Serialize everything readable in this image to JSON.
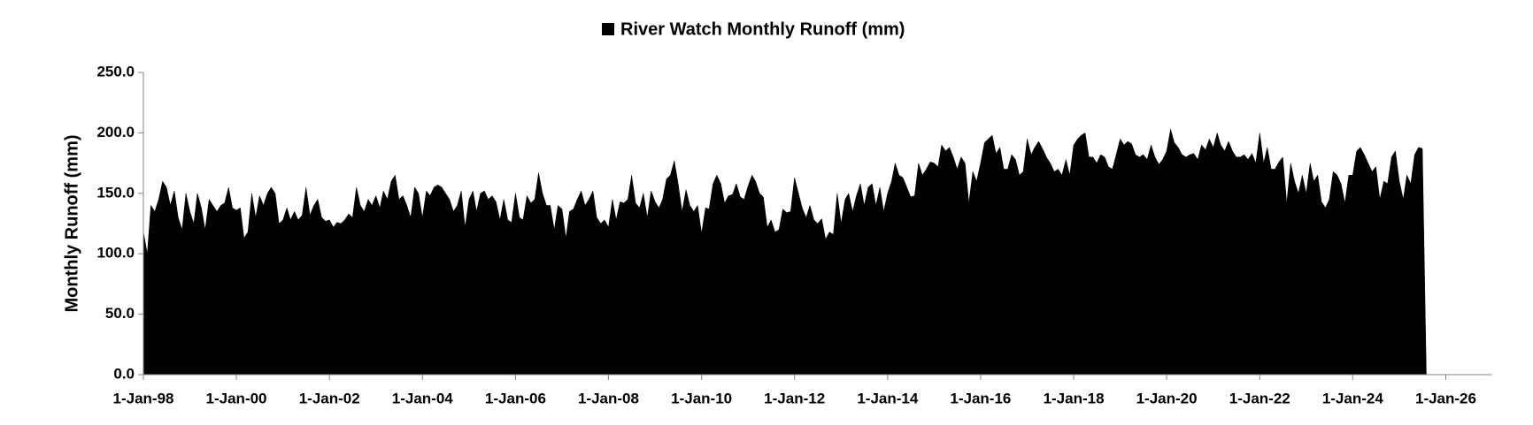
{
  "chart_data": {
    "type": "area",
    "y_label": "Monthly Runoff (mm)",
    "series": [
      {
        "name": "River Watch Monthly Runoff (mm)",
        "color": "#000000",
        "values": [
          118,
          100,
          140,
          135,
          145,
          160,
          155,
          140,
          152,
          130,
          120,
          150,
          135,
          125,
          150,
          138,
          120,
          145,
          140,
          135,
          140,
          142,
          155,
          138,
          136,
          138,
          113,
          118,
          150,
          130,
          148,
          140,
          150,
          155,
          150,
          125,
          128,
          138,
          128,
          135,
          128,
          132,
          155,
          132,
          140,
          145,
          130,
          127,
          128,
          122,
          126,
          125,
          128,
          133,
          130,
          155,
          140,
          135,
          145,
          140,
          148,
          138,
          152,
          145,
          160,
          165,
          145,
          148,
          140,
          130,
          155,
          150,
          130,
          152,
          148,
          155,
          157,
          155,
          150,
          145,
          135,
          140,
          152,
          122,
          145,
          152,
          135,
          150,
          152,
          145,
          148,
          143,
          128,
          145,
          128,
          126,
          150,
          130,
          128,
          148,
          142,
          145,
          167,
          150,
          140,
          140,
          120,
          140,
          137,
          113,
          135,
          137,
          145,
          152,
          140,
          145,
          152,
          130,
          125,
          128,
          122,
          145,
          128,
          143,
          142,
          145,
          165,
          142,
          138,
          150,
          130,
          152,
          143,
          138,
          145,
          162,
          165,
          177,
          158,
          135,
          153,
          140,
          135,
          140,
          117,
          138,
          137,
          158,
          165,
          158,
          142,
          148,
          149,
          158,
          147,
          145,
          156,
          165,
          160,
          150,
          147,
          122,
          128,
          118,
          120,
          137,
          134,
          135,
          163,
          150,
          138,
          130,
          140,
          128,
          125,
          129,
          112,
          118,
          116,
          150,
          125,
          145,
          150,
          135,
          148,
          158,
          140,
          155,
          158,
          140,
          155,
          135,
          150,
          160,
          175,
          165,
          163,
          155,
          147,
          148,
          175,
          165,
          170,
          176,
          175,
          172,
          190,
          185,
          188,
          180,
          170,
          180,
          175,
          142,
          168,
          160,
          175,
          192,
          195,
          198,
          183,
          188,
          170,
          170,
          182,
          178,
          165,
          168,
          195,
          182,
          188,
          193,
          187,
          180,
          175,
          168,
          170,
          165,
          178,
          165,
          190,
          195,
          198,
          200,
          180,
          180,
          175,
          182,
          180,
          172,
          170,
          182,
          195,
          190,
          193,
          191,
          182,
          180,
          182,
          178,
          190,
          180,
          174,
          178,
          185,
          203,
          192,
          188,
          182,
          180,
          182,
          183,
          178,
          190,
          186,
          195,
          188,
          200,
          190,
          185,
          193,
          185,
          180,
          180,
          182,
          178,
          183,
          175,
          200,
          175,
          188,
          170,
          170,
          176,
          180,
          142,
          175,
          160,
          150,
          165,
          150,
          175,
          160,
          165,
          143,
          138,
          145,
          168,
          165,
          158,
          142,
          165,
          165,
          185,
          188,
          182,
          175,
          168,
          172,
          145,
          160,
          158,
          180,
          185,
          160,
          145,
          165,
          158,
          182,
          188,
          187,
          0
        ]
      }
    ],
    "x": [
      "1998-01-01",
      "1998-02-01",
      "1998-03-01",
      "1998-04-01",
      "1998-05-01",
      "1998-06-01",
      "1998-07-01",
      "1998-08-01",
      "1998-09-01",
      "1998-10-01",
      "1998-11-01",
      "1998-12-01",
      "1999-01-01",
      "1999-02-01",
      "1999-03-01",
      "1999-04-01",
      "1999-05-01",
      "1999-06-01",
      "1999-07-01",
      "1999-08-01",
      "1999-09-01",
      "1999-10-01",
      "1999-11-01",
      "1999-12-01",
      "2000-01-01",
      "2000-02-01",
      "2000-03-01",
      "2000-04-01",
      "2000-05-01",
      "2000-06-01",
      "2000-07-01",
      "2000-08-01",
      "2000-09-01",
      "2000-10-01",
      "2000-11-01",
      "2000-12-01",
      "2001-01-01",
      "2001-02-01",
      "2001-03-01",
      "2001-04-01",
      "2001-05-01",
      "2001-06-01",
      "2001-07-01",
      "2001-08-01",
      "2001-09-01",
      "2001-10-01",
      "2001-11-01",
      "2001-12-01",
      "2002-01-01",
      "2002-02-01",
      "2002-03-01",
      "2002-04-01",
      "2002-05-01",
      "2002-06-01",
      "2002-07-01",
      "2002-08-01",
      "2002-09-01",
      "2002-10-01",
      "2002-11-01",
      "2002-12-01",
      "2003-01-01",
      "2003-02-01",
      "2003-03-01",
      "2003-04-01",
      "2003-05-01",
      "2003-06-01",
      "2003-07-01",
      "2003-08-01",
      "2003-09-01",
      "2003-10-01",
      "2003-11-01",
      "2003-12-01",
      "2004-01-01",
      "2004-02-01",
      "2004-03-01",
      "2004-04-01",
      "2004-05-01",
      "2004-06-01",
      "2004-07-01",
      "2004-08-01",
      "2004-09-01",
      "2004-10-01",
      "2004-11-01",
      "2004-12-01",
      "2005-01-01",
      "2005-02-01",
      "2005-03-01",
      "2005-04-01",
      "2005-05-01",
      "2005-06-01",
      "2005-07-01",
      "2005-08-01",
      "2005-09-01",
      "2005-10-01",
      "2005-11-01",
      "2005-12-01",
      "2006-01-01",
      "2006-02-01",
      "2006-03-01",
      "2006-04-01",
      "2006-05-01",
      "2006-06-01",
      "2006-07-01",
      "2006-08-01",
      "2006-09-01",
      "2006-10-01",
      "2006-11-01",
      "2006-12-01",
      "2007-01-01",
      "2007-02-01",
      "2007-03-01",
      "2007-04-01",
      "2007-05-01",
      "2007-06-01",
      "2007-07-01",
      "2007-08-01",
      "2007-09-01",
      "2007-10-01",
      "2007-11-01",
      "2007-12-01",
      "2008-01-01",
      "2008-02-01",
      "2008-03-01",
      "2008-04-01",
      "2008-05-01",
      "2008-06-01",
      "2008-07-01",
      "2008-08-01",
      "2008-09-01",
      "2008-10-01",
      "2008-11-01",
      "2008-12-01",
      "2009-01-01",
      "2009-02-01",
      "2009-03-01",
      "2009-04-01",
      "2009-05-01",
      "2009-06-01",
      "2009-07-01",
      "2009-08-01",
      "2009-09-01",
      "2009-10-01",
      "2009-11-01",
      "2009-12-01",
      "2010-01-01",
      "2010-02-01",
      "2010-03-01",
      "2010-04-01",
      "2010-05-01",
      "2010-06-01",
      "2010-07-01",
      "2010-08-01",
      "2010-09-01",
      "2010-10-01",
      "2010-11-01",
      "2010-12-01",
      "2011-01-01",
      "2011-02-01",
      "2011-03-01",
      "2011-04-01",
      "2011-05-01",
      "2011-06-01",
      "2011-07-01",
      "2011-08-01",
      "2011-09-01",
      "2011-10-01",
      "2011-11-01",
      "2011-12-01",
      "2012-01-01",
      "2012-02-01",
      "2012-03-01",
      "2012-04-01",
      "2012-05-01",
      "2012-06-01",
      "2012-07-01",
      "2012-08-01",
      "2012-09-01",
      "2012-10-01",
      "2012-11-01",
      "2012-12-01",
      "2013-01-01",
      "2013-02-01",
      "2013-03-01",
      "2013-04-01",
      "2013-05-01",
      "2013-06-01",
      "2013-07-01",
      "2013-08-01",
      "2013-09-01",
      "2013-10-01",
      "2013-11-01",
      "2013-12-01",
      "2014-01-01",
      "2014-02-01",
      "2014-03-01",
      "2014-04-01",
      "2014-05-01",
      "2014-06-01",
      "2014-07-01",
      "2014-08-01",
      "2014-09-01",
      "2014-10-01",
      "2014-11-01",
      "2014-12-01",
      "2015-01-01",
      "2015-02-01",
      "2015-03-01",
      "2015-04-01",
      "2015-05-01",
      "2015-06-01",
      "2015-07-01",
      "2015-08-01",
      "2015-09-01",
      "2015-10-01",
      "2015-11-01",
      "2015-12-01",
      "2016-01-01",
      "2016-02-01",
      "2016-03-01",
      "2016-04-01",
      "2016-05-01",
      "2016-06-01",
      "2016-07-01",
      "2016-08-01",
      "2016-09-01",
      "2016-10-01",
      "2016-11-01",
      "2016-12-01",
      "2017-01-01",
      "2017-02-01",
      "2017-03-01",
      "2017-04-01",
      "2017-05-01",
      "2017-06-01",
      "2017-07-01",
      "2017-08-01",
      "2017-09-01",
      "2017-10-01",
      "2017-11-01",
      "2017-12-01",
      "2018-01-01",
      "2018-02-01",
      "2018-03-01",
      "2018-04-01",
      "2018-05-01",
      "2018-06-01",
      "2018-07-01",
      "2018-08-01",
      "2018-09-01",
      "2018-10-01",
      "2018-11-01",
      "2018-12-01",
      "2019-01-01",
      "2019-02-01",
      "2019-03-01",
      "2019-04-01",
      "2019-05-01",
      "2019-06-01",
      "2019-07-01",
      "2019-08-01",
      "2019-09-01",
      "2019-10-01",
      "2019-11-01",
      "2019-12-01",
      "2020-01-01",
      "2020-02-01",
      "2020-03-01",
      "2020-04-01",
      "2020-05-01",
      "2020-06-01",
      "2020-07-01",
      "2020-08-01",
      "2020-09-01",
      "2020-10-01",
      "2020-11-01",
      "2020-12-01",
      "2021-01-01",
      "2021-02-01",
      "2021-03-01",
      "2021-04-01",
      "2021-05-01",
      "2021-06-01",
      "2021-07-01",
      "2021-08-01",
      "2021-09-01",
      "2021-10-01",
      "2021-11-01",
      "2021-12-01",
      "2022-01-01",
      "2022-02-01",
      "2022-03-01",
      "2022-04-01",
      "2022-05-01",
      "2022-06-01",
      "2022-07-01",
      "2022-08-01",
      "2022-09-01",
      "2022-10-01",
      "2022-11-01",
      "2022-12-01",
      "2023-01-01",
      "2023-02-01",
      "2023-03-01",
      "2023-04-01",
      "2023-05-01",
      "2023-06-01",
      "2023-07-01",
      "2023-08-01",
      "2023-09-01",
      "2023-10-01",
      "2023-11-01",
      "2023-12-01",
      "2024-01-01",
      "2024-02-01",
      "2024-03-01",
      "2024-04-01",
      "2024-05-01",
      "2024-06-01",
      "2024-07-01",
      "2024-08-01",
      "2024-09-01",
      "2024-10-01",
      "2024-11-01",
      "2024-12-01",
      "2025-01-01",
      "2025-02-01",
      "2025-03-01",
      "2025-04-01",
      "2025-05-01",
      "2025-06-01",
      "2025-07-01",
      "2025-08-01"
    ],
    "xlim": [
      "1998-01-01",
      "2027-01-01"
    ],
    "xticks": [
      {
        "value": "1998-01-01",
        "label": "1-Jan-98"
      },
      {
        "value": "2000-01-01",
        "label": "1-Jan-00"
      },
      {
        "value": "2002-01-01",
        "label": "1-Jan-02"
      },
      {
        "value": "2004-01-01",
        "label": "1-Jan-04"
      },
      {
        "value": "2006-01-01",
        "label": "1-Jan-06"
      },
      {
        "value": "2008-01-01",
        "label": "1-Jan-08"
      },
      {
        "value": "2010-01-01",
        "label": "1-Jan-10"
      },
      {
        "value": "2012-01-01",
        "label": "1-Jan-12"
      },
      {
        "value": "2014-01-01",
        "label": "1-Jan-14"
      },
      {
        "value": "2016-01-01",
        "label": "1-Jan-16"
      },
      {
        "value": "2018-01-01",
        "label": "1-Jan-18"
      },
      {
        "value": "2020-01-01",
        "label": "1-Jan-20"
      },
      {
        "value": "2022-01-01",
        "label": "1-Jan-22"
      },
      {
        "value": "2024-01-01",
        "label": "1-Jan-24"
      },
      {
        "value": "2026-01-01",
        "label": "1-Jan-26"
      }
    ],
    "ylim": [
      0,
      250
    ],
    "yticks": [
      {
        "value": 0,
        "label": "0.0"
      },
      {
        "value": 50,
        "label": "50.0"
      },
      {
        "value": 100,
        "label": "100.0"
      },
      {
        "value": 150,
        "label": "150.0"
      },
      {
        "value": 200,
        "label": "200.0"
      },
      {
        "value": 250,
        "label": "250.0"
      }
    ],
    "legend": "top",
    "grid": false
  }
}
